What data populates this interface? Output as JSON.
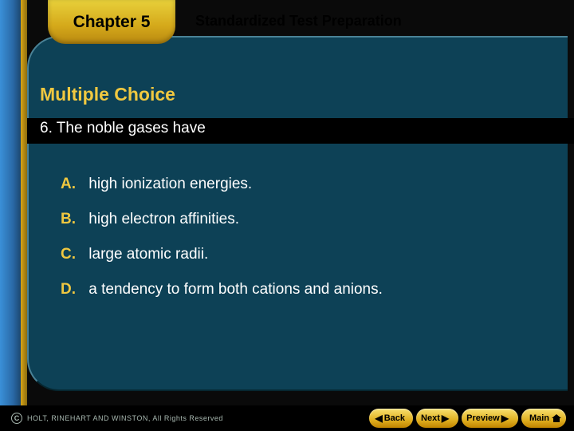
{
  "header": {
    "chapter": "Chapter 5",
    "title": "Standardized Test Preparation"
  },
  "section": {
    "heading": "Multiple Choice",
    "question_number": "6.",
    "question_text": "The noble gases have"
  },
  "choices": [
    {
      "letter": "A.",
      "text": "high ionization energies."
    },
    {
      "letter": "B.",
      "text": "high electron affinities."
    },
    {
      "letter": "C.",
      "text": "large atomic radii."
    },
    {
      "letter": "D.",
      "text": "a tendency to form both cations and anions."
    }
  ],
  "footer": {
    "copyright": "HOLT, RINEHART AND WINSTON, All Rights Reserved"
  },
  "nav": {
    "back": "Back",
    "next": "Next",
    "preview": "Preview",
    "main": "Main"
  },
  "colors": {
    "panel_bg": "#0d4156",
    "accent_yellow": "#f0c840",
    "tab_gradient_top": "#e8d03a",
    "tab_gradient_bottom": "#b88810",
    "left_blue": "#2a6aa8"
  }
}
